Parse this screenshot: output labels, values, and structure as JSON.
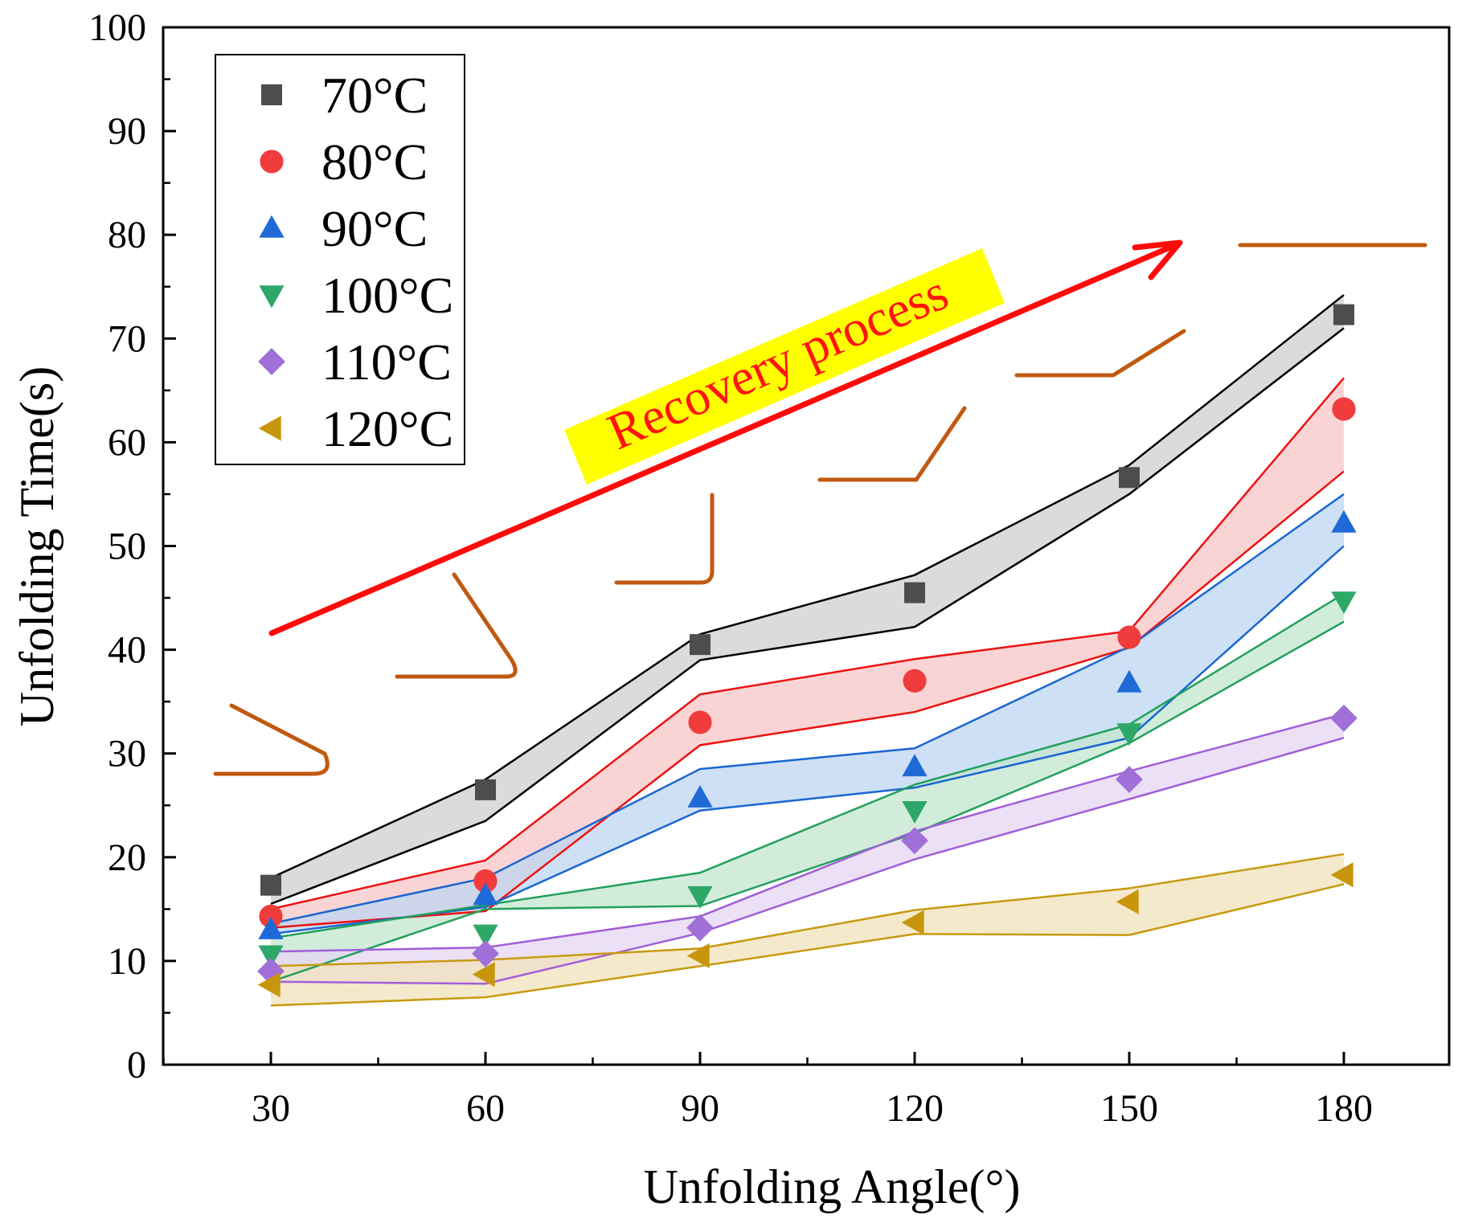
{
  "chart_data": {
    "type": "line",
    "title": "",
    "xlabel": "Unfolding Angle(°)",
    "ylabel": "Unfolding Time(s)",
    "xlim": [
      20,
      190
    ],
    "ylim": [
      0,
      100
    ],
    "x": [
      30,
      60,
      90,
      120,
      150,
      180
    ],
    "x_tick_labels": [
      "30",
      "60",
      "90",
      "120",
      "150",
      "180"
    ],
    "y_tick_labels": [
      "0",
      "10",
      "20",
      "30",
      "40",
      "50",
      "60",
      "70",
      "80",
      "90",
      "100"
    ],
    "annotation": "Recovery process",
    "legend_position": "top-left",
    "series": [
      {
        "name": "70°C",
        "marker": "square",
        "color": "#4d4d4d",
        "band_color": "#cfcfcf",
        "line_color": "#000000",
        "values": [
          17.3,
          26.5,
          40.5,
          45.5,
          56.6,
          72.3
        ],
        "upper": [
          18.0,
          27.5,
          41.5,
          47.2,
          57.8,
          74.2
        ],
        "lower": [
          15.5,
          23.5,
          39.0,
          42.2,
          55.0,
          71.0
        ]
      },
      {
        "name": "80°C",
        "marker": "circle",
        "color": "#f03c3c",
        "band_color": "#f8c6c6",
        "line_color": "#ee1111",
        "values": [
          14.3,
          17.7,
          33.0,
          37.0,
          41.2,
          63.2
        ],
        "upper": [
          15.0,
          19.7,
          35.7,
          39.1,
          41.8,
          66.2
        ],
        "lower": [
          13.2,
          14.8,
          30.8,
          34.0,
          40.2,
          57.2
        ]
      },
      {
        "name": "90°C",
        "marker": "triangle-up",
        "color": "#1f6ad6",
        "band_color": "#bcd6f2",
        "line_color": "#1a66d0",
        "values": [
          13.0,
          16.3,
          25.7,
          28.7,
          36.8,
          52.2
        ],
        "upper": [
          13.6,
          18.0,
          28.5,
          30.5,
          40.3,
          55.0
        ],
        "lower": [
          12.6,
          15.2,
          24.5,
          26.7,
          31.5,
          50.0
        ]
      },
      {
        "name": "100°C",
        "marker": "triangle-down",
        "color": "#2ea869",
        "band_color": "#c3e6cf",
        "line_color": "#22a05c",
        "values": [
          10.6,
          12.6,
          16.3,
          24.5,
          32.0,
          44.7
        ],
        "upper": [
          12.2,
          15.4,
          18.5,
          27.0,
          32.8,
          45.4
        ],
        "lower": [
          8.0,
          15.0,
          15.3,
          22.3,
          31.0,
          42.7
        ]
      },
      {
        "name": "110°C",
        "marker": "diamond",
        "color": "#a070d8",
        "band_color": "#e4d6f3",
        "line_color": "#a05fd8",
        "values": [
          9.0,
          10.7,
          13.2,
          21.6,
          27.5,
          33.4
        ],
        "upper": [
          10.9,
          11.3,
          14.3,
          22.5,
          28.3,
          33.8
        ],
        "lower": [
          8.0,
          7.8,
          12.7,
          19.8,
          25.6,
          31.5
        ]
      },
      {
        "name": "120°C",
        "marker": "triangle-left",
        "color": "#c8960c",
        "band_color": "#f1e2bb",
        "line_color": "#c89a10",
        "values": [
          7.7,
          8.7,
          10.5,
          13.7,
          15.7,
          18.3
        ],
        "upper": [
          9.5,
          10.1,
          11.2,
          14.9,
          17.0,
          20.3
        ],
        "lower": [
          5.7,
          6.5,
          9.5,
          12.6,
          12.5,
          17.4
        ]
      }
    ]
  }
}
